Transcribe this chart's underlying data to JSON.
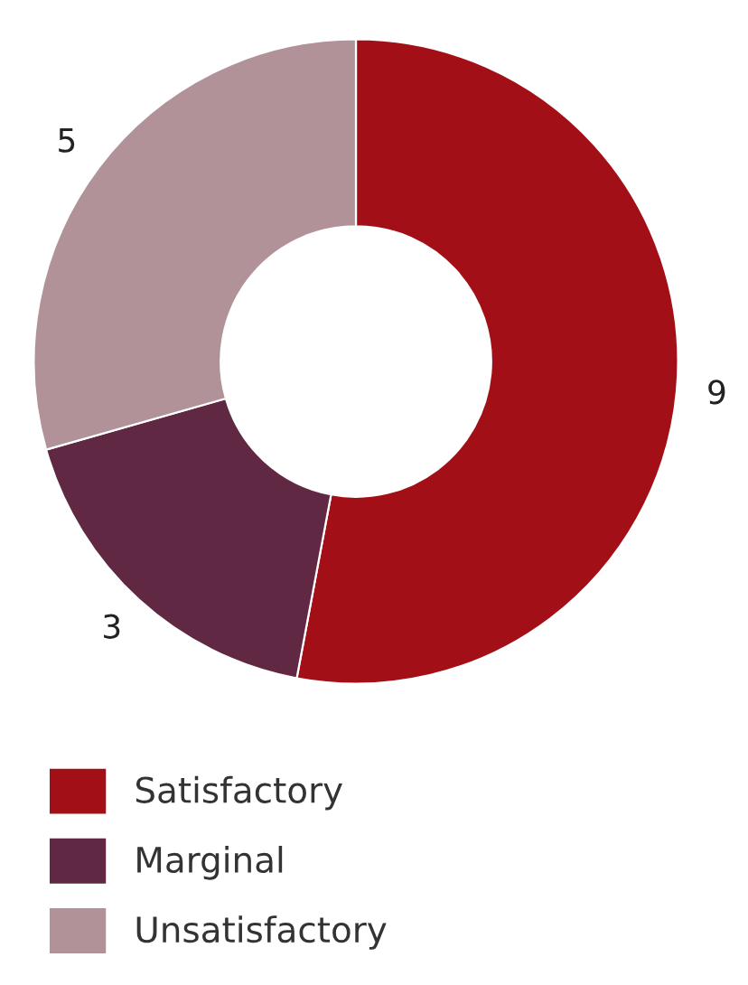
{
  "chart_data": {
    "type": "donut",
    "categories": [
      "Satisfactory",
      "Marginal",
      "Unsatisfactory"
    ],
    "values": [
      9,
      3,
      5
    ],
    "colors": [
      "#a30f16",
      "#602842",
      "#b09298"
    ],
    "data_labels": true,
    "legend": "bottom left"
  }
}
